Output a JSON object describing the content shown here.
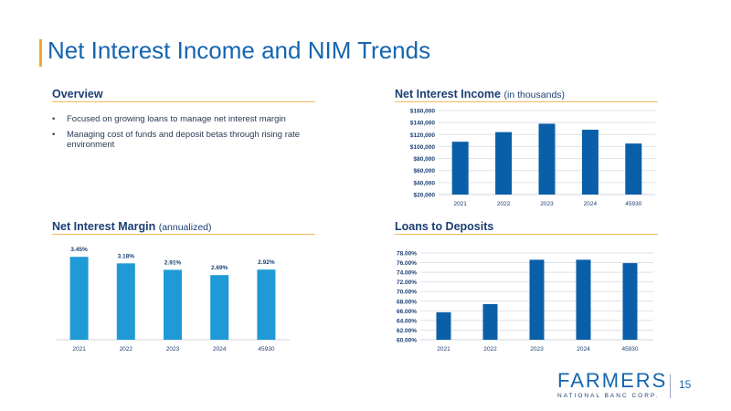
{
  "slide": {
    "title": "Net Interest Income and NIM Trends",
    "page_number": "15"
  },
  "overview": {
    "heading": "Overview",
    "bullet_char": "•",
    "bullets": [
      "Focused on growing loans to manage net interest margin",
      "Managing cost of funds and deposit betas through rising rate environment"
    ]
  },
  "nii": {
    "heading": "Net Interest Income",
    "subheading": "(in thousands)"
  },
  "nim": {
    "heading": "Net Interest Margin",
    "subheading": "(annualized)"
  },
  "ltd": {
    "heading": "Loans to Deposits"
  },
  "brand": {
    "wordmark": "FARMERS",
    "tagline": "NATIONAL BANC CORP."
  },
  "colors": {
    "accent": "#f0a830",
    "title_blue": "#1565b0",
    "dark_bar": "#0a5fa8",
    "light_bar": "#1f9ad6",
    "navy": "#1b3f72"
  },
  "chart_data": [
    {
      "id": "nii",
      "type": "bar",
      "categories": [
        "2021",
        "2022",
        "2023",
        "2024",
        "45930"
      ],
      "values": [
        108000,
        124000,
        138000,
        128000,
        105000
      ],
      "ylim": [
        20000,
        160000
      ],
      "yticks": [
        "$20,000",
        "$40,000",
        "$60,000",
        "$80,000",
        "$100,000",
        "$120,000",
        "$140,000",
        "$160,000"
      ],
      "grid": true,
      "color": "#0a5fa8"
    },
    {
      "id": "nim",
      "type": "bar",
      "categories": [
        "2021",
        "2022",
        "2023",
        "2024",
        "45930"
      ],
      "values": [
        3.45,
        3.18,
        2.91,
        2.69,
        2.92
      ],
      "data_labels": [
        "3.45%",
        "3.18%",
        "2.91%",
        "2.69%",
        "2.92%"
      ],
      "ylim": [
        0,
        3.8
      ],
      "grid": false,
      "color": "#1f9ad6"
    },
    {
      "id": "ltd",
      "type": "bar",
      "categories": [
        "2021",
        "2022",
        "2023",
        "2024",
        "45930"
      ],
      "values": [
        65.7,
        67.4,
        76.6,
        76.6,
        75.9
      ],
      "ylim": [
        60,
        78
      ],
      "yticks": [
        "60.00%",
        "62.00%",
        "64.00%",
        "66.00%",
        "68.00%",
        "70.00%",
        "72.00%",
        "74.00%",
        "76.00%",
        "78.00%"
      ],
      "grid": true,
      "color": "#0a5fa8"
    }
  ]
}
